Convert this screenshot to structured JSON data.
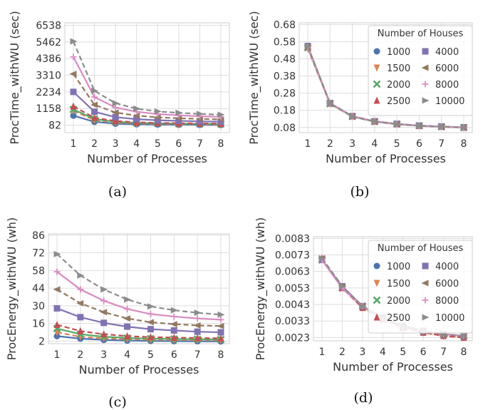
{
  "colors": {
    "1000": "#4C72B0",
    "1500": "#DD8452",
    "2000": "#55A868",
    "2500": "#C44E52",
    "4000": "#8172B3",
    "6000": "#937860",
    "8000": "#DA8BC3",
    "10000": "#8C8C8C"
  },
  "chart_data": [
    {
      "type": "line",
      "caption": "(a)",
      "xlabel": "Number of Processes",
      "ylabel": "ProcTime_withWU (sec)",
      "x": [
        1,
        2,
        3,
        4,
        5,
        6,
        7,
        8
      ],
      "xtick_labels": [
        "1",
        "2",
        "3",
        "4",
        "5",
        "6",
        "7",
        "8"
      ],
      "yticks": [
        82,
        1158,
        2234,
        3310,
        4386,
        5462,
        6538
      ],
      "ytick_labels": [
        "82",
        "1158",
        "2234",
        "3310",
        "4386",
        "5462",
        "6538"
      ],
      "ylim": [
        -400,
        6700
      ],
      "grid": true,
      "legend": null,
      "series": [
        {
          "name": "1000",
          "values": [
            700,
            300,
            180,
            140,
            120,
            110,
            100,
            95
          ],
          "marker": "circle",
          "dash": "solid"
        },
        {
          "name": "1500",
          "values": [
            1000,
            420,
            260,
            200,
            170,
            150,
            140,
            130
          ],
          "marker": "tri-down",
          "dash": "dashed"
        },
        {
          "name": "2000",
          "values": [
            1100,
            480,
            300,
            230,
            200,
            180,
            165,
            155
          ],
          "marker": "x",
          "dash": "solid"
        },
        {
          "name": "2500",
          "values": [
            1300,
            560,
            350,
            270,
            230,
            210,
            195,
            185
          ],
          "marker": "tri-up",
          "dash": "dashed"
        },
        {
          "name": "4000",
          "values": [
            2234,
            950,
            600,
            470,
            400,
            360,
            330,
            310
          ],
          "marker": "square",
          "dash": "solid"
        },
        {
          "name": "6000",
          "values": [
            3400,
            1400,
            900,
            700,
            590,
            530,
            490,
            460
          ],
          "marker": "tri-left",
          "dash": "dashed"
        },
        {
          "name": "8000",
          "values": [
            4500,
            1900,
            1220,
            950,
            800,
            720,
            660,
            620
          ],
          "marker": "plus",
          "dash": "solid"
        },
        {
          "name": "10000",
          "values": [
            5500,
            2300,
            1500,
            1150,
            970,
            880,
            810,
            760
          ],
          "marker": "tri-right",
          "dash": "dashed"
        }
      ]
    },
    {
      "type": "line",
      "caption": "(b)",
      "xlabel": "Number of Processes",
      "ylabel": "ProcTime_withWU (sec)",
      "x": [
        1,
        2,
        3,
        4,
        5,
        6,
        7,
        8
      ],
      "xtick_labels": [
        "1",
        "2",
        "3",
        "4",
        "5",
        "6",
        "7",
        "8"
      ],
      "yticks": [
        0.08,
        0.18,
        0.28,
        0.38,
        0.48,
        0.58,
        0.68
      ],
      "ytick_labels": [
        "0.08",
        "0.18",
        "0.28",
        "0.38",
        "0.48",
        "0.58",
        "0.68"
      ],
      "ylim": [
        0.05,
        0.69
      ],
      "grid": true,
      "legend": {
        "title": "Number of Houses",
        "placement": "top-right"
      },
      "series": [
        {
          "name": "1000",
          "values": [
            0.55,
            0.22,
            0.145,
            0.115,
            0.1,
            0.09,
            0.085,
            0.08
          ],
          "marker": "circle",
          "dash": "solid"
        },
        {
          "name": "1500",
          "values": [
            0.54,
            0.218,
            0.143,
            0.113,
            0.099,
            0.089,
            0.084,
            0.079
          ],
          "marker": "tri-down",
          "dash": "dashed"
        },
        {
          "name": "2000",
          "values": [
            0.545,
            0.219,
            0.144,
            0.114,
            0.1,
            0.09,
            0.084,
            0.08
          ],
          "marker": "x",
          "dash": "solid"
        },
        {
          "name": "2500",
          "values": [
            0.55,
            0.22,
            0.145,
            0.115,
            0.1,
            0.09,
            0.085,
            0.08
          ],
          "marker": "tri-up",
          "dash": "dashed"
        },
        {
          "name": "4000",
          "values": [
            0.555,
            0.222,
            0.146,
            0.116,
            0.101,
            0.091,
            0.086,
            0.081
          ],
          "marker": "square",
          "dash": "solid"
        },
        {
          "name": "6000",
          "values": [
            0.55,
            0.22,
            0.145,
            0.115,
            0.1,
            0.09,
            0.085,
            0.08
          ],
          "marker": "tri-left",
          "dash": "dashed"
        },
        {
          "name": "8000",
          "values": [
            0.548,
            0.221,
            0.145,
            0.115,
            0.1,
            0.09,
            0.085,
            0.08
          ],
          "marker": "plus",
          "dash": "solid"
        },
        {
          "name": "10000",
          "values": [
            0.552,
            0.221,
            0.145,
            0.115,
            0.1,
            0.09,
            0.085,
            0.08
          ],
          "marker": "tri-right",
          "dash": "dashed"
        }
      ]
    },
    {
      "type": "line",
      "caption": "(c)",
      "xlabel": "Number of Processes",
      "ylabel": "ProcEnergy_withWU (wh)",
      "x": [
        1,
        2,
        3,
        4,
        5,
        6,
        7,
        8
      ],
      "xtick_labels": [
        "1",
        "2",
        "3",
        "4",
        "5",
        "6",
        "7",
        "8"
      ],
      "yticks": [
        2,
        16,
        30,
        44,
        58,
        72,
        86
      ],
      "ytick_labels": [
        "2",
        "16",
        "30",
        "44",
        "58",
        "72",
        "86"
      ],
      "ylim": [
        0,
        87
      ],
      "grid": true,
      "legend": null,
      "series": [
        {
          "name": "1000",
          "values": [
            6,
            4,
            3,
            2.5,
            2.2,
            2.0,
            1.9,
            1.8
          ],
          "marker": "circle",
          "dash": "solid"
        },
        {
          "name": "1500",
          "values": [
            9,
            5.5,
            4.2,
            3.6,
            3.2,
            3.0,
            2.8,
            2.7
          ],
          "marker": "tri-down",
          "dash": "dashed"
        },
        {
          "name": "2000",
          "values": [
            12,
            7.5,
            5.5,
            4.5,
            4.0,
            3.7,
            3.5,
            3.3
          ],
          "marker": "x",
          "dash": "solid"
        },
        {
          "name": "2500",
          "values": [
            15,
            10,
            7.5,
            6,
            5.2,
            4.8,
            4.5,
            4.3
          ],
          "marker": "tri-up",
          "dash": "dashed"
        },
        {
          "name": "4000",
          "values": [
            28,
            21,
            16.5,
            13.5,
            11.5,
            10.5,
            9.5,
            9
          ],
          "marker": "square",
          "dash": "solid"
        },
        {
          "name": "6000",
          "values": [
            43,
            32,
            25,
            20,
            17,
            15.5,
            14.5,
            14
          ],
          "marker": "tri-left",
          "dash": "dashed"
        },
        {
          "name": "8000",
          "values": [
            57,
            43,
            34,
            27.5,
            23.5,
            21.5,
            20,
            19
          ],
          "marker": "plus",
          "dash": "solid"
        },
        {
          "name": "10000",
          "values": [
            71,
            54,
            43,
            35,
            29.5,
            26.5,
            24.5,
            23
          ],
          "marker": "tri-right",
          "dash": "dashed"
        }
      ]
    },
    {
      "type": "line",
      "caption": "(d)",
      "xlabel": "Number of Processes",
      "ylabel": "ProcEnergy_withWU (wh)",
      "x": [
        1,
        2,
        3,
        4,
        5,
        6,
        7,
        8
      ],
      "xtick_labels": [
        "1",
        "2",
        "3",
        "4",
        "5",
        "6",
        "7",
        "8"
      ],
      "yticks": [
        0.0023,
        0.0033,
        0.0043,
        0.0053,
        0.0063,
        0.0073,
        0.0083
      ],
      "ytick_labels": [
        "0.0023",
        "0.0033",
        "0.0043",
        "0.0053",
        "0.0063",
        "0.0073",
        "0.0083"
      ],
      "ylim": [
        0.0021,
        0.0084
      ],
      "grid": true,
      "legend": {
        "title": "Number of Houses",
        "placement": "top-right"
      },
      "series": [
        {
          "name": "1000",
          "values": [
            0.007,
            0.0053,
            0.0042,
            0.0034,
            0.0029,
            0.0027,
            0.0025,
            0.0024
          ],
          "marker": "circle",
          "dash": "solid"
        },
        {
          "name": "1500",
          "values": [
            0.007,
            0.0053,
            0.0041,
            0.0034,
            0.0029,
            0.0026,
            0.0024,
            0.0023
          ],
          "marker": "tri-down",
          "dash": "dashed"
        },
        {
          "name": "2000",
          "values": [
            0.007,
            0.0053,
            0.0042,
            0.0034,
            0.0029,
            0.0027,
            0.0025,
            0.0024
          ],
          "marker": "x",
          "dash": "solid"
        },
        {
          "name": "2500",
          "values": [
            0.0071,
            0.0053,
            0.0041,
            0.0034,
            0.0029,
            0.0026,
            0.0024,
            0.0023
          ],
          "marker": "tri-up",
          "dash": "dashed"
        },
        {
          "name": "4000",
          "values": [
            0.007,
            0.0054,
            0.0042,
            0.0035,
            0.003,
            0.0027,
            0.0025,
            0.0024
          ],
          "marker": "square",
          "dash": "solid"
        },
        {
          "name": "6000",
          "values": [
            0.0071,
            0.0054,
            0.0042,
            0.0035,
            0.003,
            0.0027,
            0.0025,
            0.0024
          ],
          "marker": "tri-left",
          "dash": "dashed"
        },
        {
          "name": "8000",
          "values": [
            0.007,
            0.0053,
            0.0042,
            0.0034,
            0.0029,
            0.0027,
            0.0025,
            0.0024
          ],
          "marker": "plus",
          "dash": "solid"
        },
        {
          "name": "10000",
          "values": [
            0.0071,
            0.0054,
            0.0042,
            0.0035,
            0.003,
            0.0027,
            0.0025,
            0.0024
          ],
          "marker": "tri-right",
          "dash": "dashed"
        }
      ]
    }
  ]
}
